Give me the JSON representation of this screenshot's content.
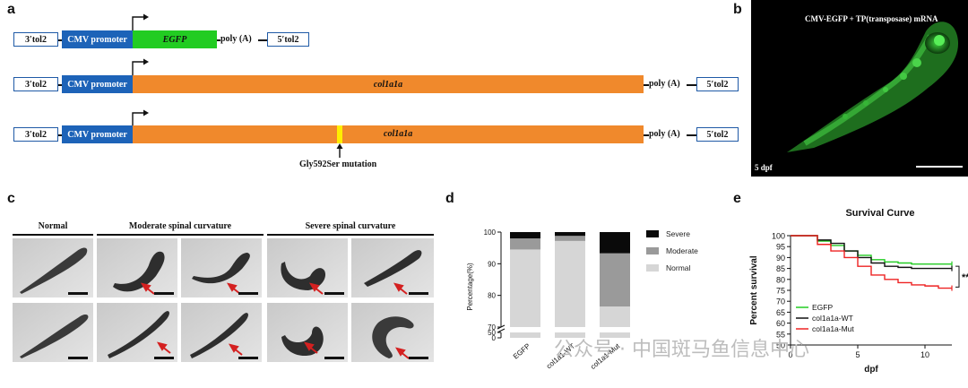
{
  "panel_a": {
    "letter": "a",
    "constructs": [
      {
        "left_arm": "3′tol2",
        "promoter": "CMV promoter",
        "gene": "EGFP",
        "polyA": "poly (A)",
        "right_arm": "5′tol2"
      },
      {
        "left_arm": "3′tol2",
        "promoter": "CMV promoter",
        "gene": "col1a1a",
        "polyA": "poly (A)",
        "right_arm": "5′tol2"
      },
      {
        "left_arm": "3′tol2",
        "promoter": "CMV promoter",
        "gene": "col1a1a",
        "polyA": "poly (A)",
        "right_arm": "5′tol2"
      }
    ],
    "mutation_label": "Gly592Ser mutation",
    "colors": {
      "promoter": "#1d63b8",
      "egfp": "#22cc22",
      "col1a1a": "#f0892c",
      "mutation": "#ffee00"
    }
  },
  "panel_b": {
    "letter": "b",
    "title": "CMV-EGFP + TP(transposase)  mRNA",
    "stage": "5 dpf"
  },
  "panel_c": {
    "letter": "c",
    "groups": [
      "Normal",
      "Moderate spinal curvature",
      "Severe spinal curvature"
    ]
  },
  "panel_d": {
    "letter": "d",
    "chart_data": {
      "type": "bar",
      "stacked": true,
      "categories": [
        "EGFP",
        "col1a1-WT",
        "col1a1-Mut"
      ],
      "series": [
        {
          "name": "Normal",
          "color": "#d6d6d6",
          "values": [
            94.5,
            97.2,
            76.5
          ]
        },
        {
          "name": "Moderate",
          "color": "#9a9a9a",
          "values": [
            3.5,
            1.6,
            16.8
          ]
        },
        {
          "name": "Severe",
          "color": "#0a0a0a",
          "values": [
            2.0,
            1.2,
            6.7
          ]
        }
      ],
      "ylabel": "Percentage(%)",
      "yticks": [
        0,
        50,
        70,
        80,
        90,
        100
      ],
      "ylim": [
        0,
        100
      ],
      "axis_break": [
        50,
        70
      ],
      "legend_position": "right"
    }
  },
  "panel_e": {
    "letter": "e",
    "chart_data": {
      "type": "line",
      "title": "Survival Curve",
      "xlabel": "dpf",
      "ylabel": "Percent survival",
      "xlim": [
        0,
        12
      ],
      "ylim": [
        50,
        100
      ],
      "xticks": [
        0,
        5,
        10
      ],
      "yticks": [
        50,
        55,
        60,
        65,
        70,
        75,
        80,
        85,
        90,
        95,
        100
      ],
      "series": [
        {
          "name": "EGFP",
          "color": "#22cc22",
          "x": [
            0,
            1,
            2,
            3,
            4,
            5,
            6,
            7,
            8,
            9,
            10,
            11,
            12
          ],
          "y": [
            100,
            100,
            97.5,
            95.5,
            93,
            91,
            89,
            88,
            87.5,
            87,
            87,
            87,
            87
          ]
        },
        {
          "name": "col1a1a-WT",
          "color": "#111111",
          "x": [
            0,
            1,
            2,
            3,
            4,
            5,
            6,
            7,
            8,
            9,
            10,
            11,
            12
          ],
          "y": [
            100,
            100,
            98,
            96.5,
            93,
            90,
            87.5,
            86,
            85.5,
            85,
            85,
            85,
            85
          ]
        },
        {
          "name": "col1a1a-Mut",
          "color": "#ee2222",
          "x": [
            0,
            1,
            2,
            3,
            4,
            5,
            6,
            7,
            8,
            9,
            10,
            11,
            12
          ],
          "y": [
            100,
            100,
            96,
            93,
            90,
            86,
            82,
            80,
            78.5,
            77.5,
            77,
            76,
            76
          ]
        }
      ],
      "annotation": "**",
      "legend_position": "bottom-left"
    }
  },
  "watermark": "公众号 · 中国斑马鱼信息中心"
}
